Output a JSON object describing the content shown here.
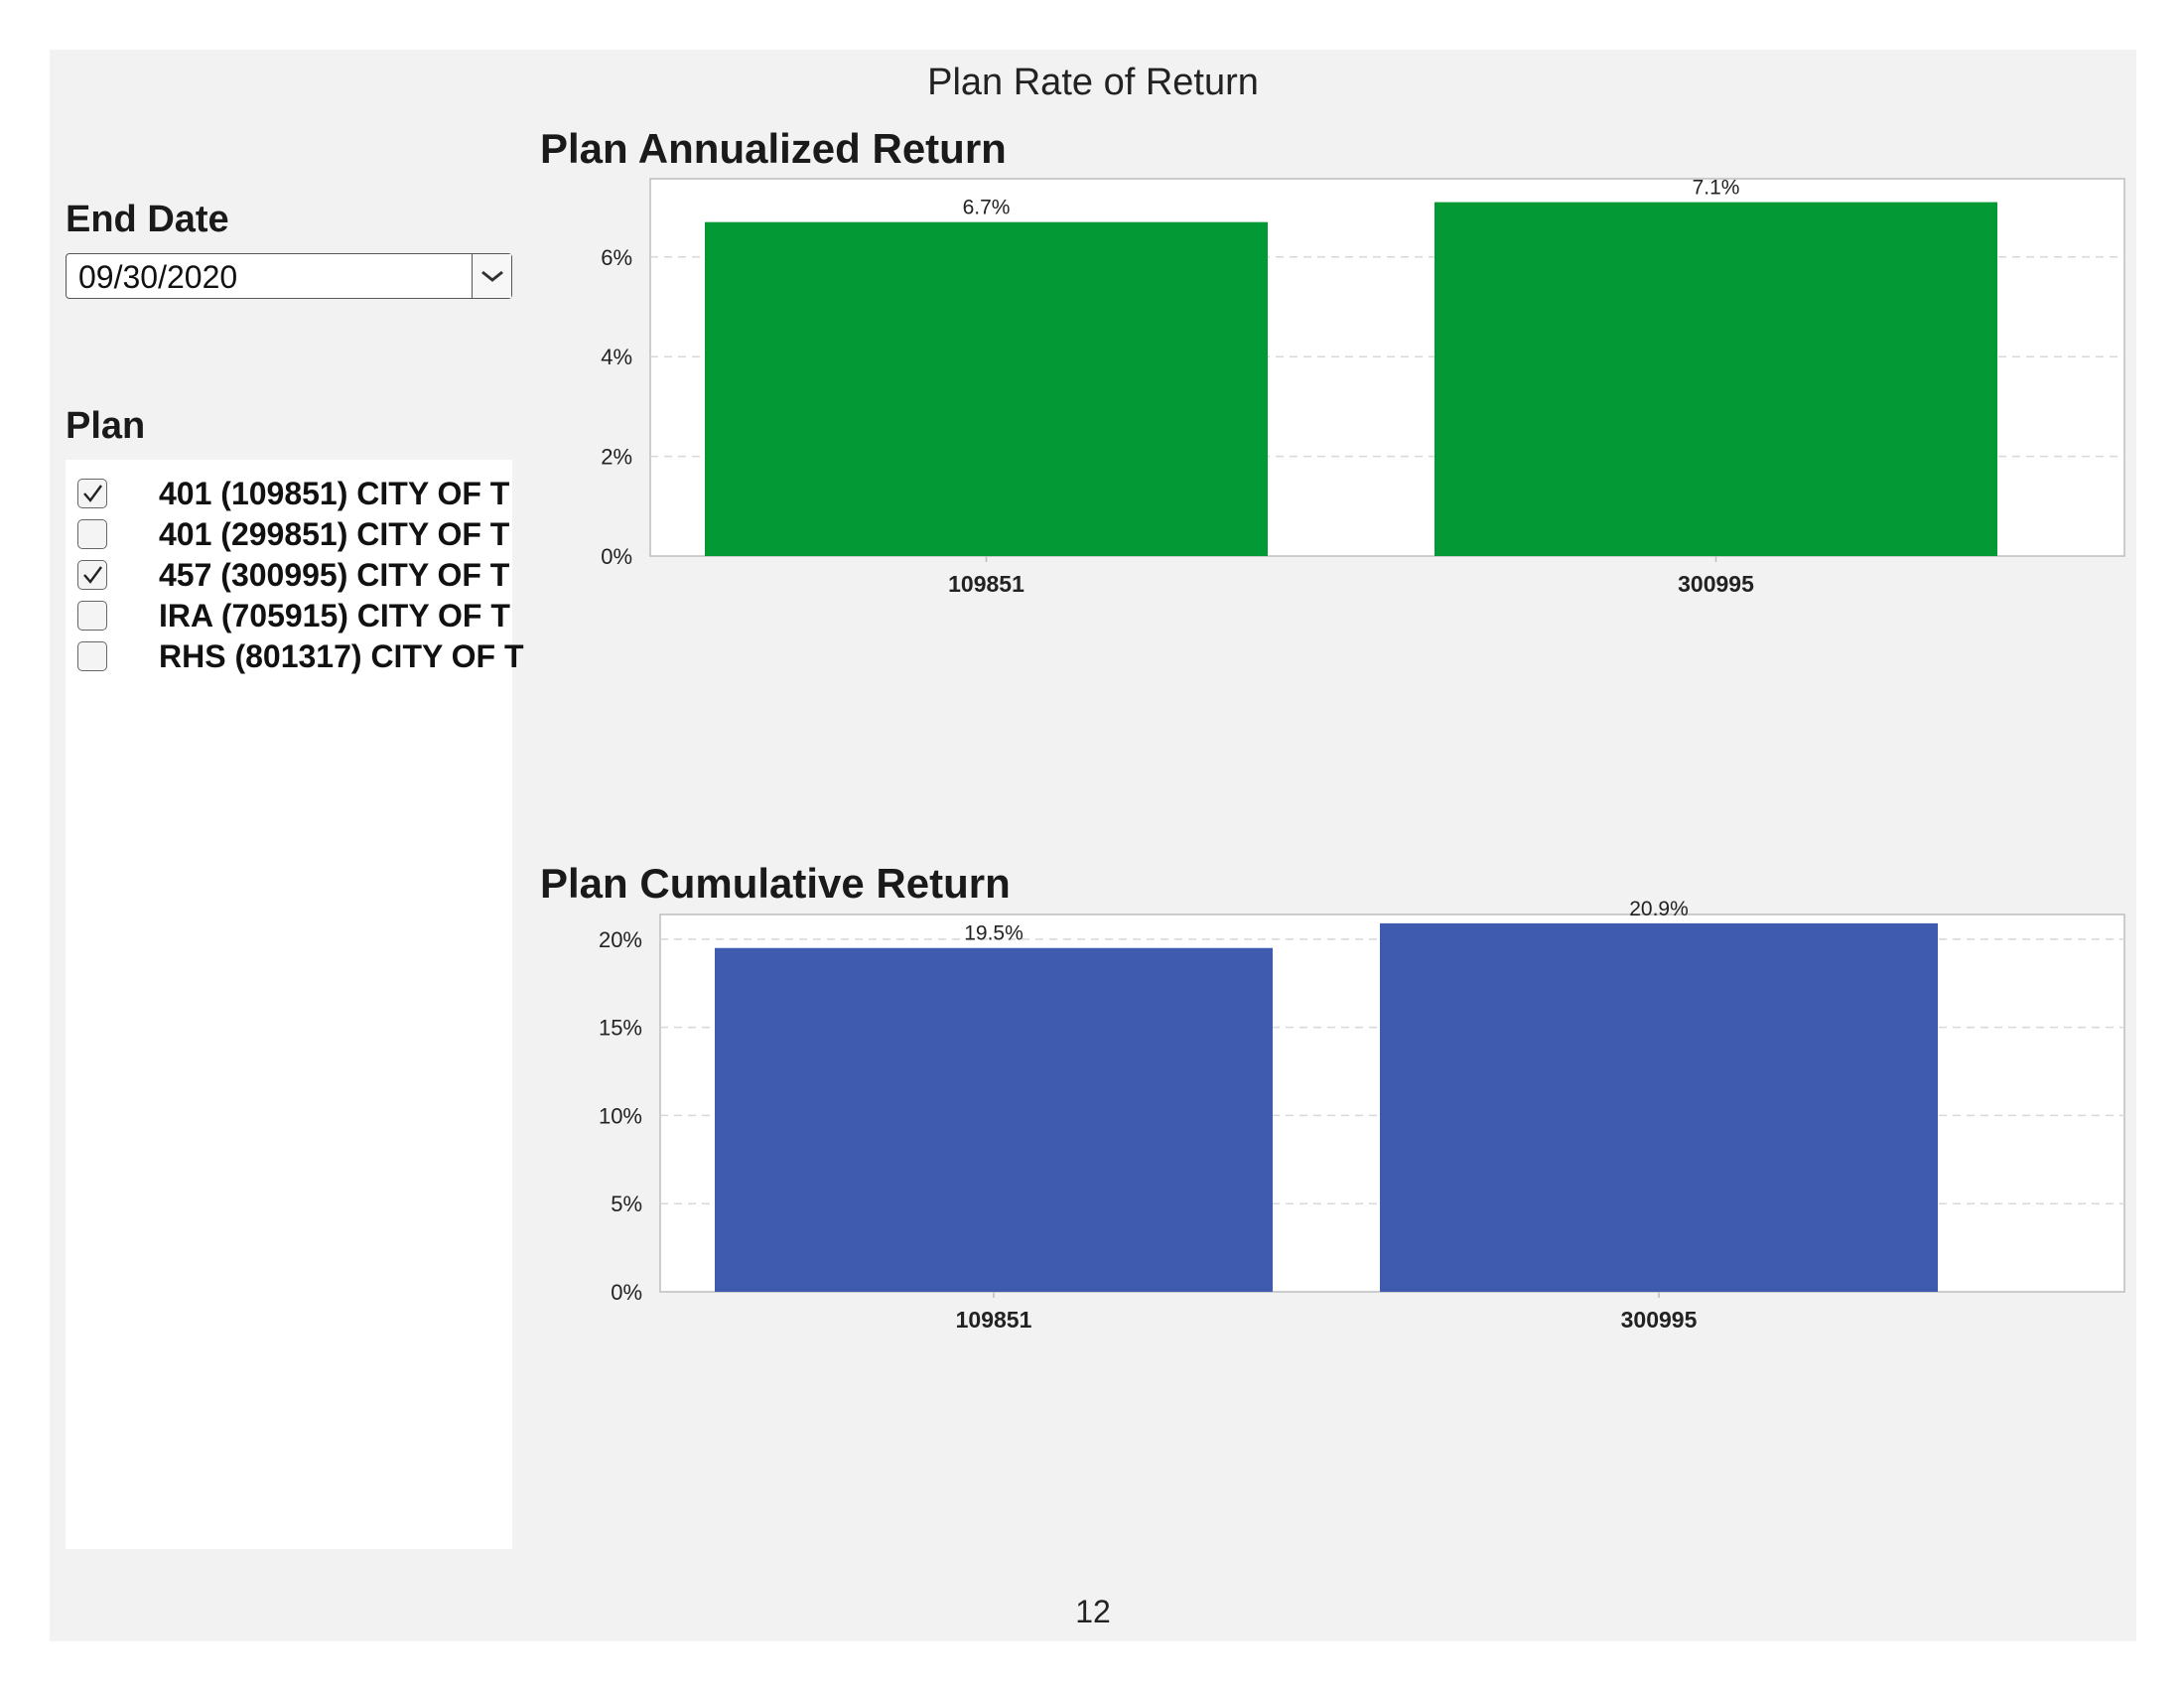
{
  "page_title": "Plan Rate of Return",
  "page_number": "12",
  "filters": {
    "end_date_label": "End Date",
    "end_date_value": "09/30/2020",
    "plan_label": "Plan",
    "plans": [
      {
        "label": "401 (109851) CITY OF T",
        "checked": true
      },
      {
        "label": "401 (299851) CITY OF T",
        "checked": false
      },
      {
        "label": "457 (300995) CITY OF T",
        "checked": true
      },
      {
        "label": "IRA (705915) CITY OF T",
        "checked": false
      },
      {
        "label": "RHS (801317) CITY OF T",
        "checked": false
      }
    ]
  },
  "colors": {
    "annualized_bar": "#039a35",
    "cumulative_bar": "#3f5bb0",
    "gridline": "#d8d8d8",
    "axis": "#bdbdbd"
  },
  "chart_data": [
    {
      "type": "bar",
      "title": "Plan Annualized Return",
      "categories": [
        "109851",
        "300995"
      ],
      "values": [
        6.7,
        7.1
      ],
      "data_labels": [
        "6.7%",
        "7.1%"
      ],
      "yticks": [
        "0%",
        "2%",
        "4%",
        "6%"
      ],
      "ylim": [
        0,
        7.57
      ],
      "grid": true,
      "unit": "%"
    },
    {
      "type": "bar",
      "title": "Plan Cumulative Return",
      "categories": [
        "109851",
        "300995"
      ],
      "values": [
        19.5,
        20.9
      ],
      "data_labels": [
        "19.5%",
        "20.9%"
      ],
      "yticks": [
        "0%",
        "5%",
        "10%",
        "15%",
        "20%"
      ],
      "ylim": [
        0,
        21.4
      ],
      "grid": true,
      "unit": "%"
    }
  ]
}
